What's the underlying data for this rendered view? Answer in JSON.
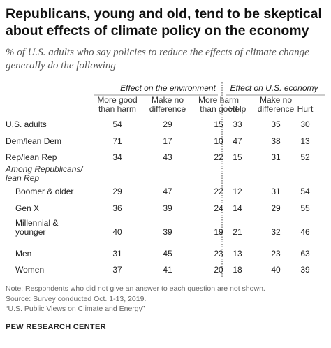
{
  "title": "Republicans, young and old, tend to be skeptical about effects of climate policy on the economy",
  "subtitle": "% of U.S. adults who say policies to reduce the effects of climate change generally do the following",
  "chart_data": {
    "type": "table",
    "groups": [
      {
        "label": "Effect on the environment",
        "columns": [
          "More good than harm",
          "Make no difference",
          "More harm than good"
        ]
      },
      {
        "label": "Effect on U.S. economy",
        "columns": [
          "Help",
          "Make no difference",
          "Hurt"
        ]
      }
    ],
    "columns": [
      {
        "lines": [
          "More good",
          "than harm"
        ]
      },
      {
        "lines": [
          "Make no",
          "difference"
        ]
      },
      {
        "lines": [
          "More harm",
          "than good"
        ]
      },
      {
        "lines": [
          "Help"
        ]
      },
      {
        "lines": [
          "Make no",
          "difference"
        ]
      },
      {
        "lines": [
          "Hurt"
        ]
      }
    ],
    "rows": [
      {
        "label": [
          "U.S. adults"
        ],
        "values": [
          54,
          29,
          15,
          33,
          35,
          30
        ]
      },
      {
        "label": [
          "Dem/lean Dem"
        ],
        "values": [
          71,
          17,
          10,
          47,
          38,
          13
        ]
      },
      {
        "label": [
          "Rep/lean Rep"
        ],
        "values": [
          34,
          43,
          22,
          15,
          31,
          52
        ]
      },
      {
        "section_header": [
          "Among Republicans/",
          "lean Rep"
        ]
      },
      {
        "label": [
          "Boomer & older"
        ],
        "indent": true,
        "values": [
          29,
          47,
          22,
          12,
          31,
          54
        ]
      },
      {
        "label": [
          "Gen X"
        ],
        "indent": true,
        "values": [
          36,
          39,
          24,
          14,
          29,
          55
        ]
      },
      {
        "label": [
          "Millennial &",
          "younger"
        ],
        "indent": true,
        "values": [
          40,
          39,
          19,
          21,
          32,
          46
        ]
      },
      {
        "label": [
          "Men"
        ],
        "indent": true,
        "values": [
          31,
          45,
          23,
          13,
          23,
          63
        ]
      },
      {
        "label": [
          "Women"
        ],
        "indent": true,
        "values": [
          37,
          41,
          20,
          18,
          40,
          39
        ]
      }
    ]
  },
  "notes": [
    "Note: Respondents who did not give an answer to each question are not shown.",
    "Source: Survey conducted Oct. 1-13, 2019.",
    "“U.S. Public Views on Climate and Energy”"
  ],
  "source_org": "PEW RESEARCH CENTER"
}
